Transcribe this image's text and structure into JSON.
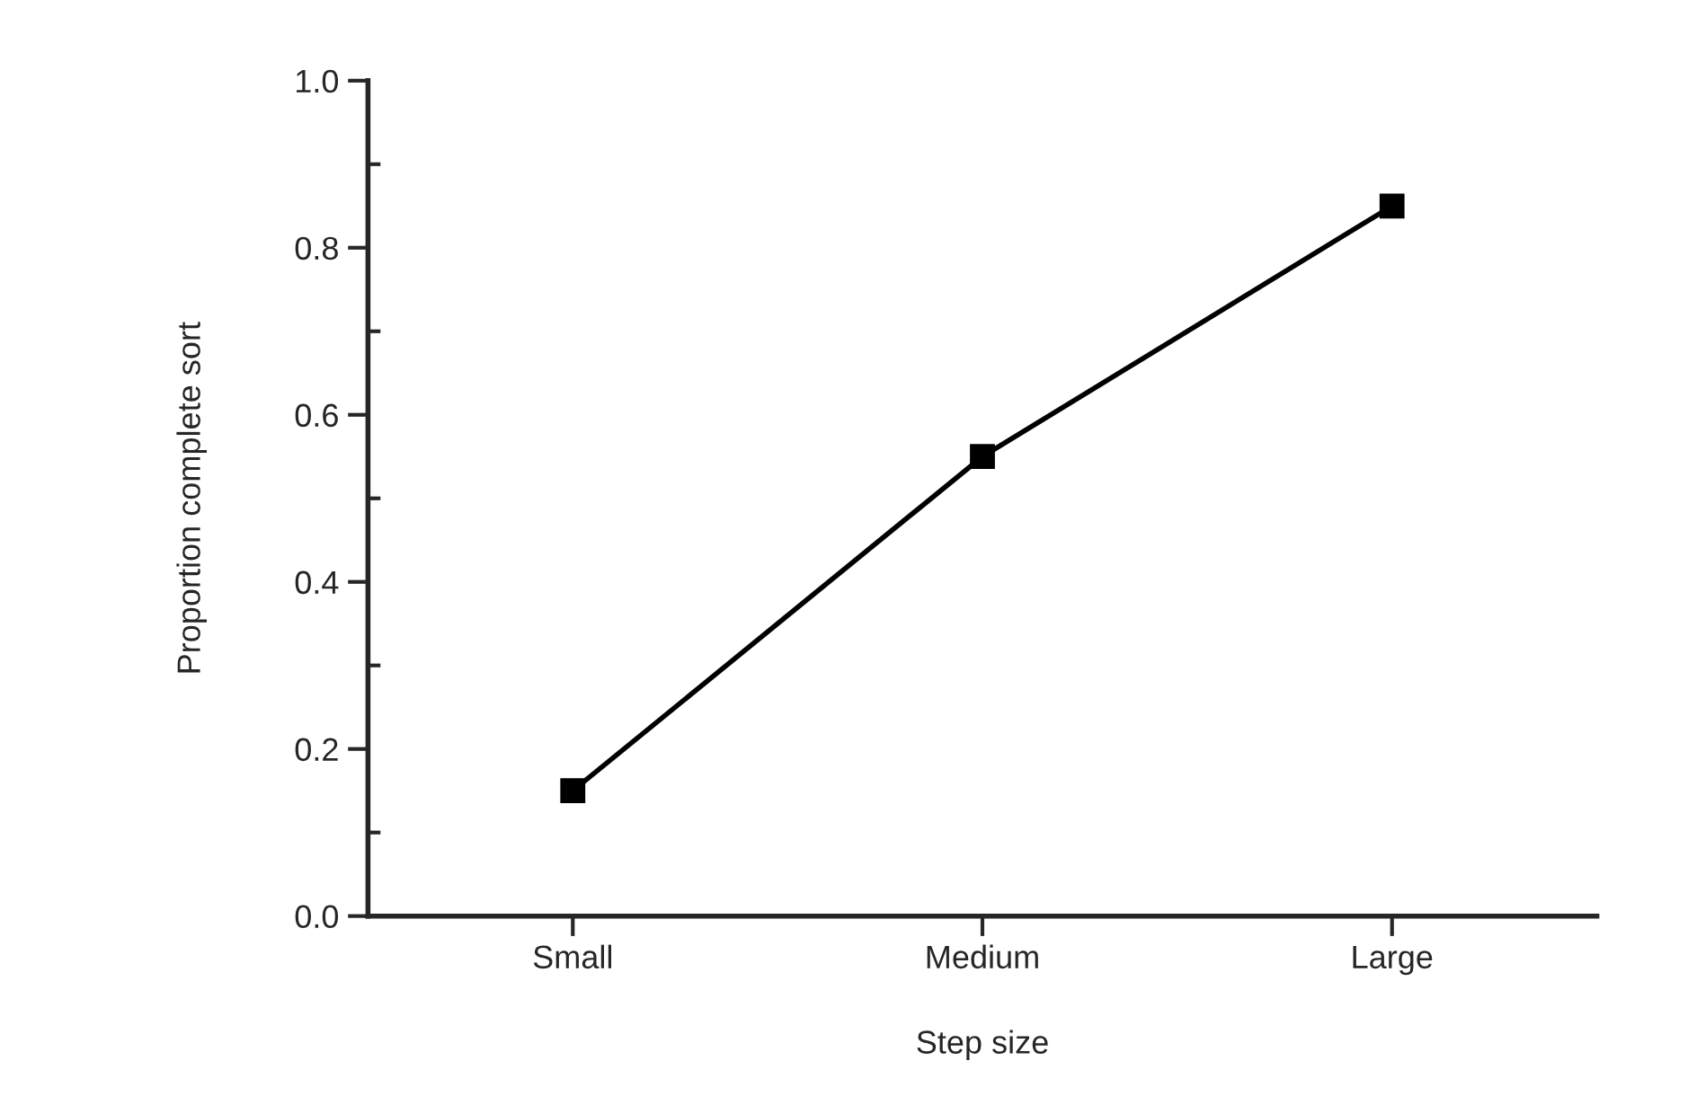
{
  "chart_data": {
    "type": "line",
    "xlabel": "Step size",
    "ylabel": "Proportion complete sort",
    "categories": [
      "Small",
      "Medium",
      "Large"
    ],
    "series": [
      {
        "color": "#000000",
        "values": [
          0.15,
          0.55,
          0.85
        ]
      }
    ],
    "ylim": [
      0,
      1
    ],
    "yticks": [
      {
        "value": 0,
        "label": "0.0"
      },
      {
        "value": 0.1,
        "label": null
      },
      {
        "value": 0.2,
        "label": "0.2"
      },
      {
        "value": 0.3,
        "label": null
      },
      {
        "value": 0.4,
        "label": "0.4"
      },
      {
        "value": 0.5,
        "label": null
      },
      {
        "value": 0.6,
        "label": "0.6"
      },
      {
        "value": 0.7,
        "label": null
      },
      {
        "value": 0.8,
        "label": "0.8"
      },
      {
        "value": 0.9,
        "label": null
      },
      {
        "value": 1,
        "label": "1.0"
      }
    ],
    "marker": "square",
    "line_style": "solid",
    "grid": false,
    "legend": false
  }
}
